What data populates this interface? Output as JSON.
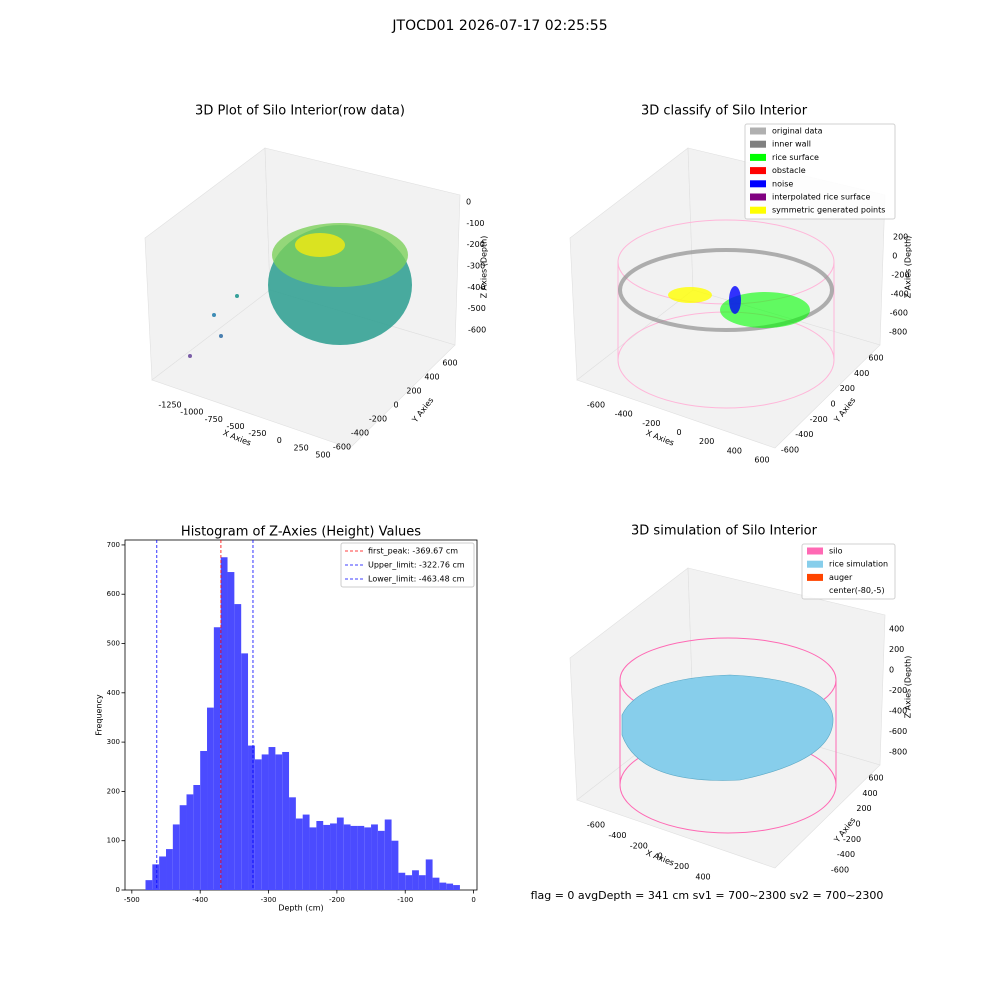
{
  "suptitle": "JTOCD01 2026-07-17 02:25:55",
  "footer": "flag = 0     avgDepth = 341 cm  sv1 = 700~2300  sv2 = 700~2300",
  "chart_data": [
    {
      "type": "scatter3d",
      "title": "3D Plot of Silo Interior(row data)",
      "xlabel": "X Axies",
      "ylabel": "Y Axies",
      "zlabel": "Z Axies (Depth)",
      "xticks": [
        -1250,
        -1000,
        -750,
        -500,
        -250,
        0,
        250,
        500
      ],
      "yticks": [
        -600,
        -400,
        -200,
        0,
        200,
        400,
        600
      ],
      "zticks": [
        -600,
        -500,
        -400,
        -300,
        -200,
        -100,
        0
      ]
    },
    {
      "type": "scatter3d",
      "title": "3D classify of Silo Interior",
      "xlabel": "X Axies",
      "ylabel": "Y Axies",
      "zlabel": "Z Axies (Depth)",
      "xticks": [
        -600,
        -400,
        -200,
        0,
        200,
        400,
        600
      ],
      "yticks": [
        -600,
        -400,
        -200,
        0,
        200,
        400,
        600
      ],
      "zticks": [
        -800,
        -600,
        -400,
        -200,
        0,
        200
      ],
      "legend": [
        {
          "name": "original data",
          "color": "#b0b0b0"
        },
        {
          "name": "inner wall",
          "color": "#808080"
        },
        {
          "name": "rice surface",
          "color": "#00ff00"
        },
        {
          "name": "obstacle",
          "color": "#ff0000"
        },
        {
          "name": "noise",
          "color": "#0000ff"
        },
        {
          "name": "interpolated rice surface",
          "color": "#800080"
        },
        {
          "name": "symmetric generated points",
          "color": "#ffff00"
        }
      ]
    },
    {
      "type": "histogram",
      "title": "Histogram of Z-Axies (Height) Values",
      "xlabel": "Depth (cm)",
      "ylabel": "Frequency",
      "color": "#4b4bff",
      "bins": [
        -480,
        -470,
        -460,
        -450,
        -440,
        -430,
        -420,
        -410,
        -400,
        -390,
        -380,
        -370,
        -360,
        -350,
        -340,
        -330,
        -320,
        -310,
        -300,
        -290,
        -280,
        -270,
        -260,
        -250,
        -240,
        -230,
        -220,
        -210,
        -200,
        -190,
        -180,
        -170,
        -160,
        -150,
        -140,
        -130,
        -120,
        -110,
        -100,
        -90,
        -80,
        -70,
        -60,
        -50,
        -40,
        -30,
        -20
      ],
      "values": [
        20,
        52,
        68,
        83,
        133,
        172,
        194,
        213,
        282,
        370,
        533,
        675,
        645,
        580,
        480,
        293,
        265,
        275,
        290,
        275,
        280,
        188,
        145,
        153,
        127,
        140,
        132,
        135,
        147,
        133,
        130,
        130,
        127,
        133,
        120,
        143,
        100,
        35,
        30,
        40,
        30,
        62,
        25,
        15,
        13,
        10
      ],
      "xlim": [
        -510,
        5
      ],
      "ylim": [
        0,
        710
      ],
      "xticks": [
        -500,
        -400,
        -300,
        -200,
        -100,
        0
      ],
      "yticks": [
        0,
        100,
        200,
        300,
        400,
        500,
        600,
        700
      ],
      "lines": [
        {
          "name": "first_peak: -369.67 cm",
          "value": -369.67,
          "color": "#ff0000"
        },
        {
          "name": "Upper_limit: -322.76 cm",
          "value": -322.76,
          "color": "#0000ff"
        },
        {
          "name": "Lower_limit: -463.48 cm",
          "value": -463.48,
          "color": "#0000ff"
        }
      ]
    },
    {
      "type": "surface3d",
      "title": "3D simulation of Silo Interior",
      "xlabel": "X Axies",
      "ylabel": "Y Axies",
      "zlabel": "Z Axies (Depth)",
      "xticks": [
        -600,
        -400,
        -200,
        0,
        200,
        400
      ],
      "yticks": [
        -600,
        -400,
        -200,
        0,
        200,
        400,
        600
      ],
      "zticks": [
        -800,
        -600,
        -400,
        -200,
        0,
        200,
        400
      ],
      "legend": [
        {
          "name": "silo",
          "color": "#ff69b4"
        },
        {
          "name": "rice simulation",
          "color": "#87ceeb"
        },
        {
          "name": "auger",
          "color": "#ff4500"
        },
        {
          "name": "center(-80,-5)",
          "color": "#ffffff"
        }
      ]
    }
  ]
}
